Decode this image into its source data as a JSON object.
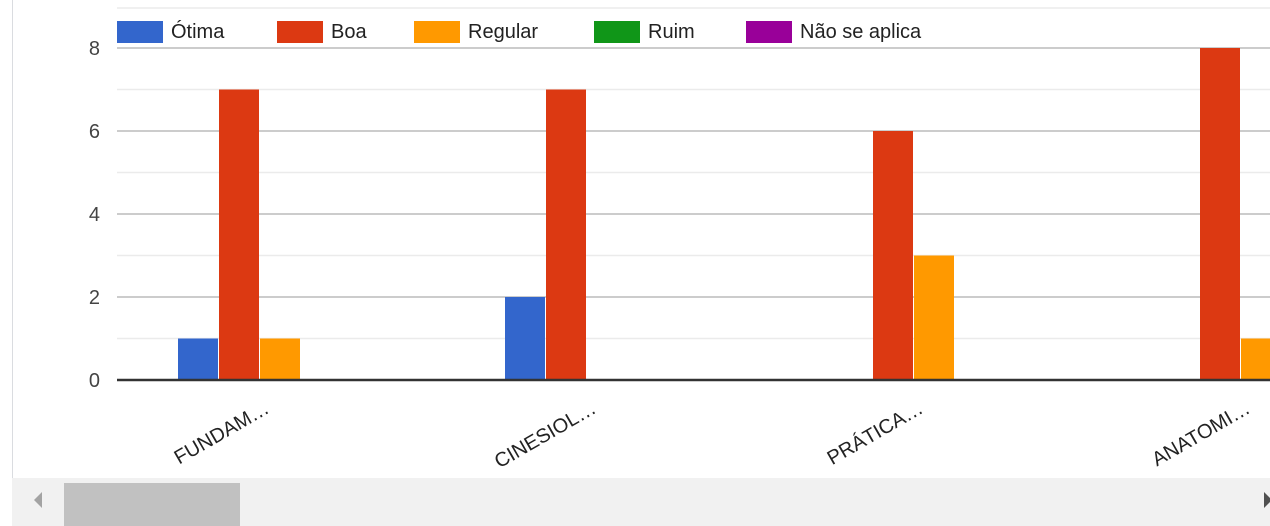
{
  "chart_data": {
    "type": "bar",
    "title": "",
    "xlabel": "",
    "ylabel": "",
    "categories": [
      "FUNDAM…",
      "CINESIOL…",
      "PRÁTICA…",
      "ANATOMI…"
    ],
    "series": [
      {
        "name": "Ótima",
        "color": "#3366cc",
        "values": [
          1,
          2,
          0,
          0
        ]
      },
      {
        "name": "Boa",
        "color": "#dc3912",
        "values": [
          7,
          7,
          6,
          8
        ]
      },
      {
        "name": "Regular",
        "color": "#ff9900",
        "values": [
          1,
          0,
          3,
          1
        ]
      },
      {
        "name": "Ruim",
        "color": "#109618",
        "values": [
          0,
          0,
          0,
          0
        ]
      },
      {
        "name": "Não se aplica",
        "color": "#990099",
        "values": [
          0,
          0,
          0,
          0
        ]
      }
    ],
    "yticks": [
      "0",
      "2",
      "4",
      "6",
      "8"
    ],
    "ylim": [
      0,
      8
    ],
    "grid": true,
    "legend_position": "top"
  },
  "scrollbar": {
    "orientation": "horizontal"
  }
}
